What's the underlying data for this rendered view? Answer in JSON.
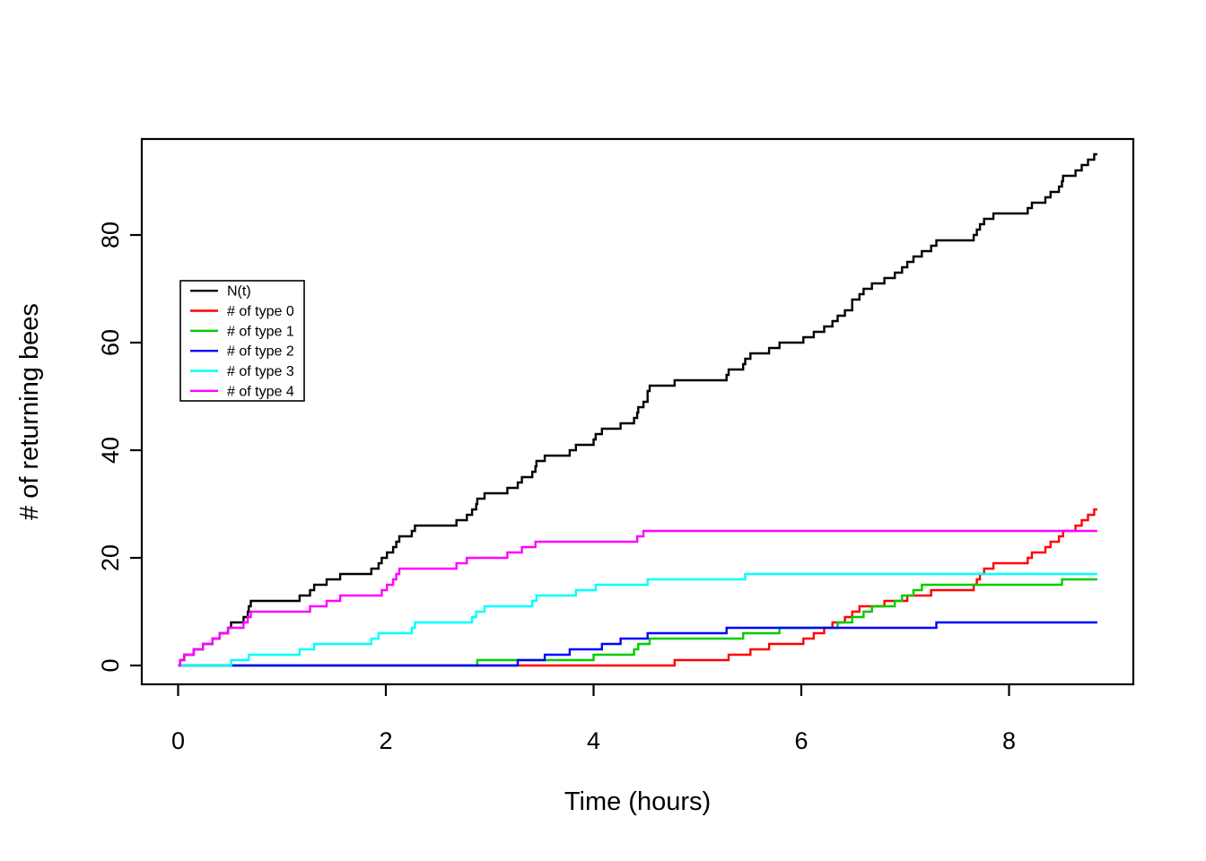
{
  "figure": {
    "background": "#ffffff",
    "text_color": "#000000"
  },
  "chart_data": {
    "type": "line",
    "style": "step-counting-process",
    "title": "",
    "xlabel": "Time (hours)",
    "ylabel": "# of returning bees",
    "x_ticks": [
      0,
      2,
      4,
      6,
      8
    ],
    "y_ticks": [
      0,
      20,
      40,
      60,
      80
    ],
    "xlim": [
      -0.37,
      9.19
    ],
    "ylim": [
      -2.5,
      98
    ],
    "t_start": 0,
    "t_end": 8.85,
    "grid": false,
    "legend": {
      "position": "left-middle",
      "entries": [
        {
          "label": "N(t)",
          "color": "#000000"
        },
        {
          "label": "# of type 0",
          "color": "#FF0000"
        },
        {
          "label": "# of type 1",
          "color": "#00CD00"
        },
        {
          "label": "# of type 2",
          "color": "#0000FF"
        },
        {
          "label": "# of type 3",
          "color": "#00FFFF"
        },
        {
          "label": "# of type 4",
          "color": "#FF00FF"
        }
      ]
    },
    "series": [
      {
        "name": "N(t)",
        "color": "#000000",
        "sum_of_types": true,
        "final_value": 95,
        "event_times": []
      },
      {
        "name": "# of type 0",
        "color": "#FF0000",
        "final_value": 29,
        "event_times": [
          4.78,
          5.3,
          5.51,
          5.69,
          6.02,
          6.12,
          6.22,
          6.3,
          6.42,
          6.49,
          6.56,
          6.8,
          7.02,
          7.25,
          7.66,
          7.69,
          7.72,
          7.76,
          7.85,
          8.18,
          8.22,
          8.35,
          8.4,
          8.48,
          8.52,
          8.64,
          8.7,
          8.76,
          8.82
        ]
      },
      {
        "name": "# of type 1",
        "color": "#00CD00",
        "final_value": 16,
        "event_times": [
          2.88,
          4.0,
          4.39,
          4.43,
          4.54,
          5.44,
          5.79,
          6.35,
          6.49,
          6.6,
          6.68,
          6.9,
          6.97,
          7.08,
          7.16,
          8.51
        ]
      },
      {
        "name": "# of type 2",
        "color": "#0000FF",
        "final_value": 8,
        "event_times": [
          3.27,
          3.53,
          3.77,
          4.08,
          4.26,
          4.52,
          5.28,
          7.3
        ]
      },
      {
        "name": "# of type 3",
        "color": "#00FFFF",
        "final_value": 17,
        "event_times": [
          0.51,
          0.68,
          1.17,
          1.31,
          1.86,
          1.93,
          2.25,
          2.28,
          2.83,
          2.87,
          2.95,
          3.41,
          3.45,
          3.83,
          4.02,
          4.52,
          5.46
        ]
      },
      {
        "name": "# of type 4",
        "color": "#FF00FF",
        "final_value": 25,
        "event_times": [
          0.02,
          0.06,
          0.15,
          0.24,
          0.33,
          0.4,
          0.48,
          0.63,
          0.67,
          0.7,
          1.27,
          1.43,
          1.56,
          1.96,
          2.01,
          2.07,
          2.1,
          2.13,
          2.68,
          2.78,
          3.17,
          3.31,
          3.44,
          4.42,
          4.48
        ]
      }
    ]
  }
}
